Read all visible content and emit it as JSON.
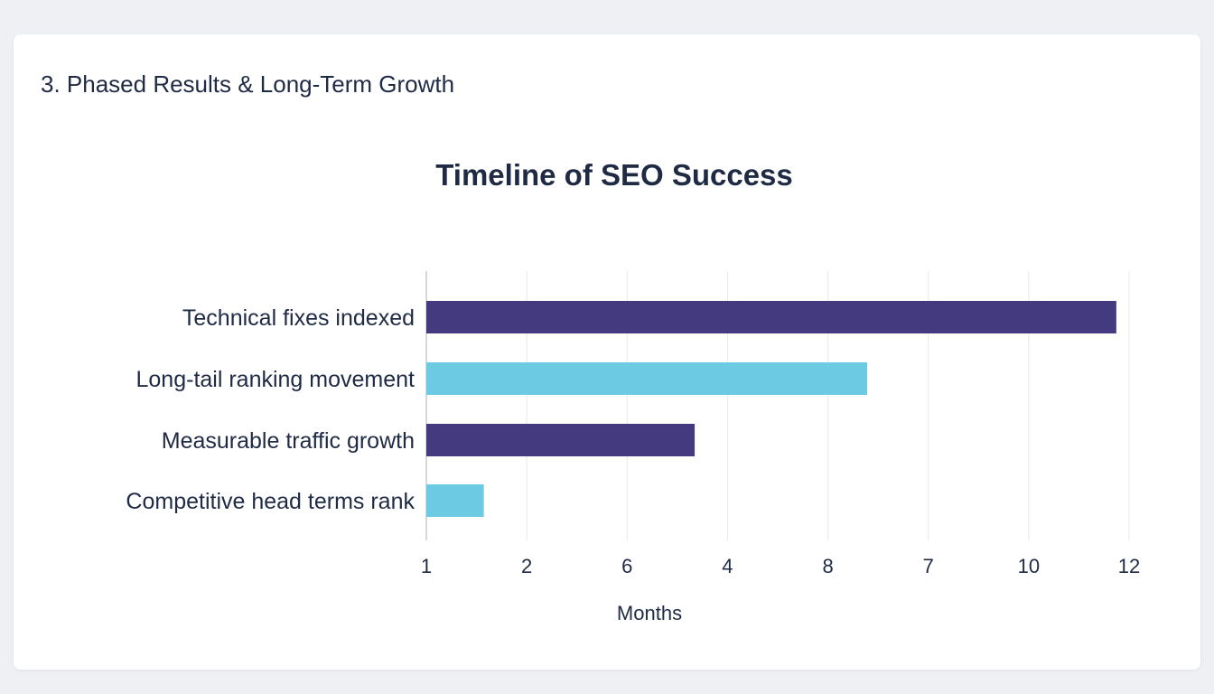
{
  "section": {
    "title": "3. Phased Results & Long-Term Growth"
  },
  "chart_data": {
    "type": "bar",
    "orientation": "horizontal",
    "title": "Timeline of SEO Success",
    "xlabel": "Months",
    "ylabel": "",
    "categories": [
      "Technical fixes indexed",
      "Long-tail ranking movement",
      "Measurable traffic growth",
      "Competitive head terms rank"
    ],
    "values": [
      11.8,
      7.9,
      5.2,
      1.9
    ],
    "x_tick_labels": [
      "1",
      "2",
      "6",
      "4",
      "8",
      "7",
      "10",
      "12"
    ],
    "xlim": [
      1,
      12
    ],
    "grid": true,
    "colors": [
      "#433a80",
      "#6ccbe2",
      "#433a80",
      "#6ccbe2"
    ],
    "gridline_color": "#e6e8ec"
  }
}
